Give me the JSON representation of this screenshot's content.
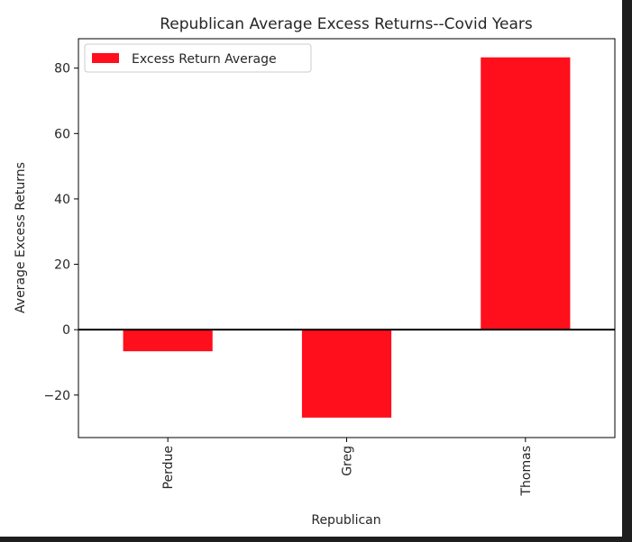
{
  "chart_data": {
    "type": "bar",
    "title": "Republican Average Excess Returns--Covid Years",
    "xlabel": "Republican",
    "ylabel": "Average Excess Returns",
    "categories": [
      "Perdue",
      "Greg",
      "Thomas"
    ],
    "series": [
      {
        "name": "Excess Return Average",
        "values": [
          -6.6,
          -26.9,
          83.3
        ],
        "color": "#ff0e1c"
      }
    ],
    "ylim": [
      -33,
      89
    ],
    "yticks": [
      -20,
      0,
      20,
      40,
      60,
      80
    ],
    "ytick_labels": [
      "−20",
      "0",
      "20",
      "40",
      "60",
      "80"
    ],
    "grid": false,
    "zero_line": true,
    "legend_position": "upper-left"
  }
}
